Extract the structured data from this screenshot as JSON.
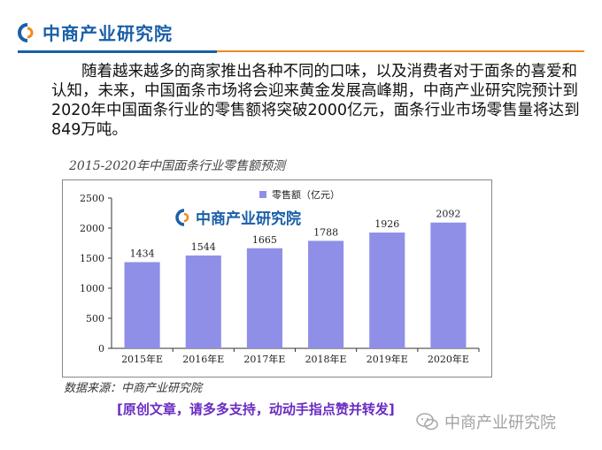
{
  "header": {
    "logo_text": "中商产业研究院"
  },
  "article": {
    "paragraph": "随着越来越多的商家推出各种不同的口味，以及消费者对于面条的喜爱和认知，未来，中国面条市场将会迎来黄金发展高峰期，中商产业研究院预计到2020年中国面条行业的零售额将突破2000亿元，面条行业市场零售量将达到849万吨。"
  },
  "chart_title": "2015-2020年中国面条行业零售额预测",
  "chart_data": {
    "type": "bar",
    "categories": [
      "2015年E",
      "2016年E",
      "2017年E",
      "2018年E",
      "2019年E",
      "2020年E"
    ],
    "series": [
      {
        "name": "零售额（亿元）",
        "values": [
          1434,
          1544,
          1665,
          1788,
          1926,
          2092
        ]
      }
    ],
    "ylim": [
      0,
      2500
    ],
    "yticks": [
      0,
      500,
      1000,
      1500,
      2000,
      2500
    ],
    "grid": false,
    "legend_position": "top-center",
    "bar_color": "#8f8fe8",
    "watermark": "中商产业研究院"
  },
  "source": "数据来源：中商产业研究院",
  "footer_note": "[原创文章，请多多支持，动动手指点赞并转发]",
  "wechat_watermark": {
    "text": "中商产业研究院",
    "icon": "wechat-icon"
  },
  "colors": {
    "brand_blue": "#1a5fa8",
    "accent_orange": "#f08a1c",
    "footer_purple": "#6a2cc2"
  }
}
